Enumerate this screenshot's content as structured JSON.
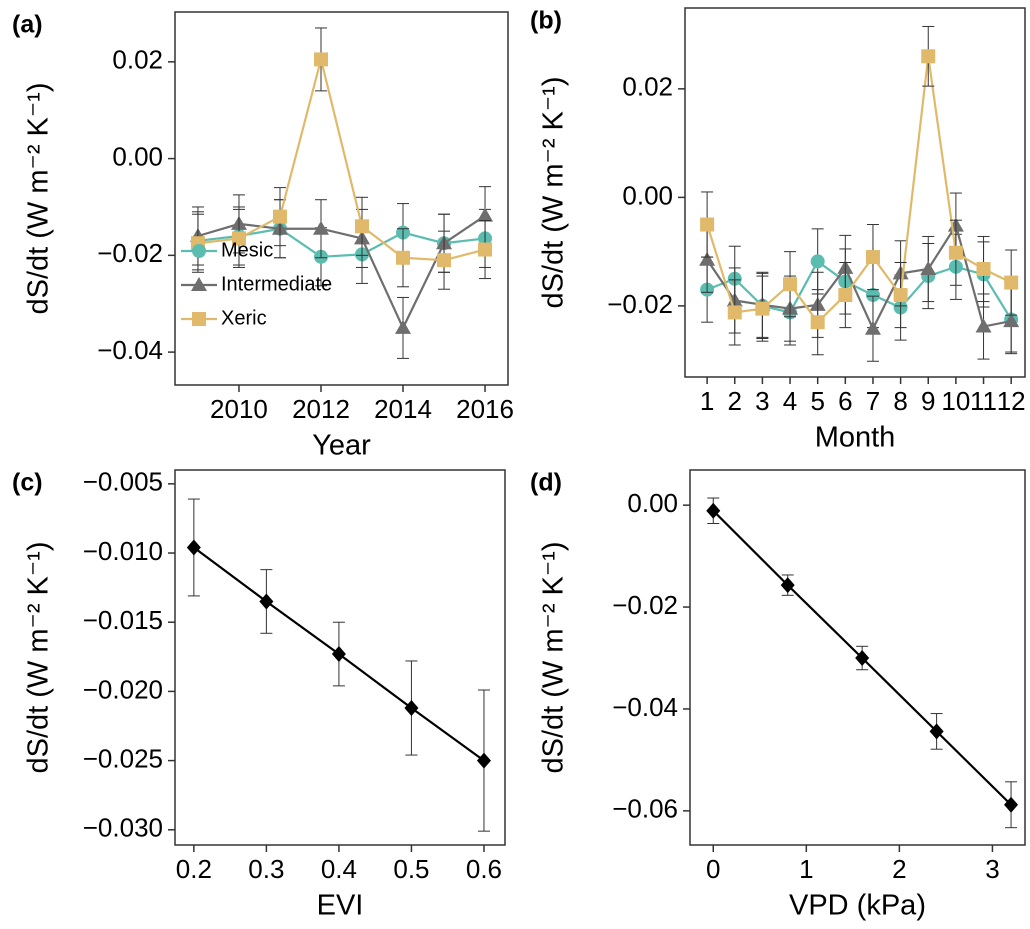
{
  "chart_data": [
    {
      "type": "line",
      "panel_label": "(a)",
      "xlabel": "Year",
      "ylabel": "dS/dt (W m⁻² K⁻¹)",
      "x": [
        2009,
        2010,
        2011,
        2012,
        2013,
        2014,
        2015,
        2016
      ],
      "xlim": [
        2008.44,
        2016.56
      ],
      "xticks": [
        2010,
        2012,
        2014,
        2016
      ],
      "ylim": [
        -0.0468,
        0.0303
      ],
      "yticks": [
        {
          "value": -0.04,
          "label": "−0.04"
        },
        {
          "value": -0.02,
          "label": "−0.02"
        },
        {
          "value": 0,
          "label": "0.00"
        },
        {
          "value": 0.02,
          "label": "0.02"
        }
      ],
      "legend": "lower left",
      "series": [
        {
          "name": "Mesic",
          "color": "#5bbcb0",
          "marker": "circle",
          "values": [
            -0.017,
            -0.016,
            -0.0145,
            -0.0203,
            -0.0198,
            -0.0153,
            -0.0175,
            -0.0165
          ],
          "errors": [
            0.006,
            0.006,
            0.006,
            0.006,
            0.006,
            0.006,
            0.006,
            0.006
          ]
        },
        {
          "name": "Intermediate",
          "color": "#6e6e6e",
          "marker": "triangle",
          "values": [
            -0.016,
            -0.0135,
            -0.0145,
            -0.0145,
            -0.0165,
            -0.035,
            -0.0175,
            -0.0118
          ],
          "errors": [
            0.006,
            0.006,
            0.006,
            0.006,
            0.006,
            0.0063,
            0.006,
            0.006
          ]
        },
        {
          "name": "Xeric",
          "color": "#e0b96a",
          "marker": "square",
          "values": [
            -0.0175,
            -0.0165,
            -0.012,
            0.0205,
            -0.014,
            -0.0205,
            -0.021,
            -0.0188
          ],
          "errors": [
            0.006,
            0.006,
            0.006,
            0.0065,
            0.006,
            0.006,
            0.006,
            0.006
          ]
        }
      ]
    },
    {
      "type": "line",
      "panel_label": "(b)",
      "xlabel": "Month",
      "ylabel": "dS/dt (W m⁻² K⁻¹)",
      "x": [
        1,
        2,
        3,
        4,
        5,
        6,
        7,
        8,
        9,
        10,
        11,
        12
      ],
      "xlim": [
        0.2,
        12.5
      ],
      "xticks": [
        1,
        2,
        3,
        4,
        5,
        6,
        7,
        8,
        9,
        10,
        11,
        12
      ],
      "ylim": [
        -0.0331,
        0.0349
      ],
      "yticks": [
        {
          "value": -0.02,
          "label": "−0.02"
        },
        {
          "value": 0,
          "label": "0.00"
        },
        {
          "value": 0.02,
          "label": "0.02"
        }
      ],
      "series": [
        {
          "name": "Mesic",
          "color": "#5bbcb0",
          "marker": "circle",
          "values": [
            -0.017,
            -0.015,
            -0.02,
            -0.0212,
            -0.0118,
            -0.0155,
            -0.018,
            -0.0203,
            -0.0145,
            -0.0128,
            -0.0142,
            -0.0225
          ],
          "errors": [
            0.006,
            0.006,
            0.006,
            0.006,
            0.006,
            0.006,
            0.006,
            0.006,
            0.006,
            0.006,
            0.006,
            0.006
          ]
        },
        {
          "name": "Intermediate",
          "color": "#6e6e6e",
          "marker": "triangle",
          "values": [
            -0.0115,
            -0.019,
            -0.0198,
            -0.0205,
            -0.0198,
            -0.013,
            -0.0242,
            -0.014,
            -0.0132,
            -0.0052,
            -0.0238,
            -0.0228
          ],
          "errors": [
            0.006,
            0.006,
            0.006,
            0.006,
            0.006,
            0.006,
            0.006,
            0.006,
            0.006,
            0.006,
            0.006,
            0.006
          ]
        },
        {
          "name": "Xeric",
          "color": "#e0b96a",
          "marker": "square",
          "values": [
            -0.005,
            -0.0212,
            -0.0205,
            -0.016,
            -0.023,
            -0.018,
            -0.011,
            -0.018,
            0.026,
            -0.0102,
            -0.0132,
            -0.0157
          ],
          "errors": [
            0.006,
            0.006,
            0.006,
            0.006,
            0.006,
            0.006,
            0.006,
            0.006,
            0.0055,
            0.006,
            0.006,
            0.006
          ]
        }
      ]
    },
    {
      "type": "line",
      "panel_label": "(c)",
      "xlabel": "EVI",
      "ylabel": "dS/dt (W m⁻² K⁻¹)",
      "x": [
        0.2,
        0.3,
        0.4,
        0.5,
        0.6
      ],
      "xlim": [
        0.174,
        0.629
      ],
      "xticks": [
        0.2,
        0.3,
        0.4,
        0.5,
        0.6
      ],
      "ylim": [
        -0.0311,
        -0.004
      ],
      "yticks": [
        {
          "value": -0.03,
          "label": "−0.030"
        },
        {
          "value": -0.025,
          "label": "−0.025"
        },
        {
          "value": -0.02,
          "label": "−0.020"
        },
        {
          "value": -0.015,
          "label": "−0.015"
        },
        {
          "value": -0.01,
          "label": "−0.010"
        },
        {
          "value": -0.005,
          "label": "−0.005"
        }
      ],
      "series": [
        {
          "color": "#000000",
          "marker": "diamond",
          "values": [
            -0.0096,
            -0.0135,
            -0.0173,
            -0.0212,
            -0.025
          ],
          "errors": [
            0.0035,
            0.0023,
            0.0023,
            0.0034,
            0.0051
          ]
        }
      ]
    },
    {
      "type": "line",
      "panel_label": "(d)",
      "xlabel": "VPD (kPa)",
      "ylabel": "dS/dt (W m⁻² K⁻¹)",
      "x": [
        0,
        0.8,
        1.6,
        2.4,
        3.2
      ],
      "xlim": [
        -0.25,
        3.35
      ],
      "xticks": [
        0,
        1,
        2,
        3
      ],
      "ylim": [
        -0.0667,
        0.0069
      ],
      "yticks": [
        {
          "value": -0.06,
          "label": "−0.06"
        },
        {
          "value": -0.04,
          "label": "−0.04"
        },
        {
          "value": -0.02,
          "label": "−0.02"
        },
        {
          "value": 0,
          "label": "0.00"
        }
      ],
      "series": [
        {
          "color": "#000000",
          "marker": "diamond",
          "values": [
            -0.0011,
            -0.0157,
            -0.03,
            -0.0444,
            -0.0588
          ],
          "errors": [
            0.0025,
            0.002,
            0.0023,
            0.0035,
            0.0045
          ]
        }
      ]
    }
  ]
}
